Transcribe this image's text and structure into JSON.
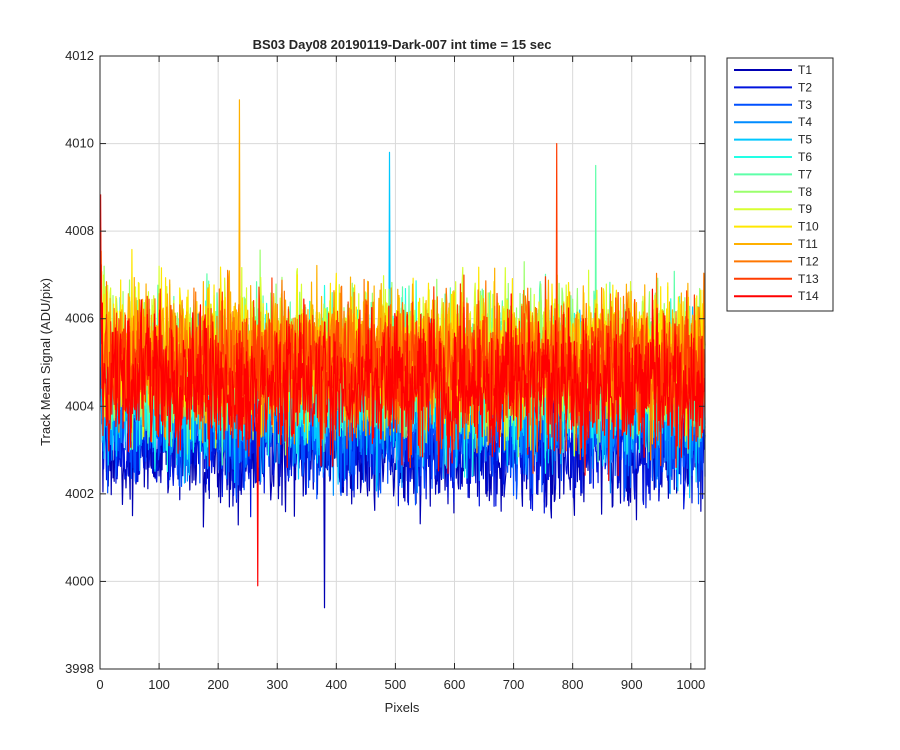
{
  "chart_data": {
    "type": "line",
    "title": "BS03 Day08 20190119-Dark-007 int time = 15 sec",
    "xlabel": "Pixels",
    "ylabel": "Track Mean Signal (ADU/pix)",
    "xlim": [
      0,
      1024
    ],
    "ylim": [
      3998,
      4012
    ],
    "x_ticks": [
      0,
      100,
      200,
      300,
      400,
      500,
      600,
      700,
      800,
      900,
      1000
    ],
    "y_ticks": [
      3998,
      4000,
      4002,
      4004,
      4006,
      4008,
      4010,
      4012
    ],
    "grid": true,
    "legend_position": "outside-top-right",
    "x_range": [
      1,
      1024
    ],
    "series": [
      {
        "name": "T1",
        "color": "#0000b3",
        "mean": 4003.0,
        "spread": 0.9,
        "notable_min": 3999.4
      },
      {
        "name": "T2",
        "color": "#0014dd",
        "mean": 4003.2,
        "spread": 0.9
      },
      {
        "name": "T3",
        "color": "#0050ff",
        "mean": 4003.6,
        "spread": 1.0
      },
      {
        "name": "T4",
        "color": "#008cff",
        "mean": 4004.0,
        "spread": 1.0
      },
      {
        "name": "T5",
        "color": "#00c8ff",
        "mean": 4004.3,
        "spread": 1.1,
        "notable_max": 4009.8
      },
      {
        "name": "T6",
        "color": "#22ffe5",
        "mean": 4004.6,
        "spread": 1.1
      },
      {
        "name": "T7",
        "color": "#5effa9",
        "mean": 4004.9,
        "spread": 1.1,
        "notable_max": 4009.5
      },
      {
        "name": "T8",
        "color": "#9aff6d",
        "mean": 4005.1,
        "spread": 1.1
      },
      {
        "name": "T9",
        "color": "#d7ff31",
        "mean": 4005.2,
        "spread": 1.1
      },
      {
        "name": "T10",
        "color": "#ffe700",
        "mean": 4005.2,
        "spread": 1.1
      },
      {
        "name": "T11",
        "color": "#ffb000",
        "mean": 4005.1,
        "spread": 1.1,
        "notable_max": 4011.0
      },
      {
        "name": "T12",
        "color": "#ff7700",
        "mean": 4005.0,
        "spread": 1.1
      },
      {
        "name": "T13",
        "color": "#ff3c00",
        "mean": 4004.8,
        "spread": 1.1,
        "notable_max": 4010.0
      },
      {
        "name": "T14",
        "color": "#ff0000",
        "mean": 4004.5,
        "spread": 1.1,
        "notable_min": 3999.9
      }
    ]
  }
}
